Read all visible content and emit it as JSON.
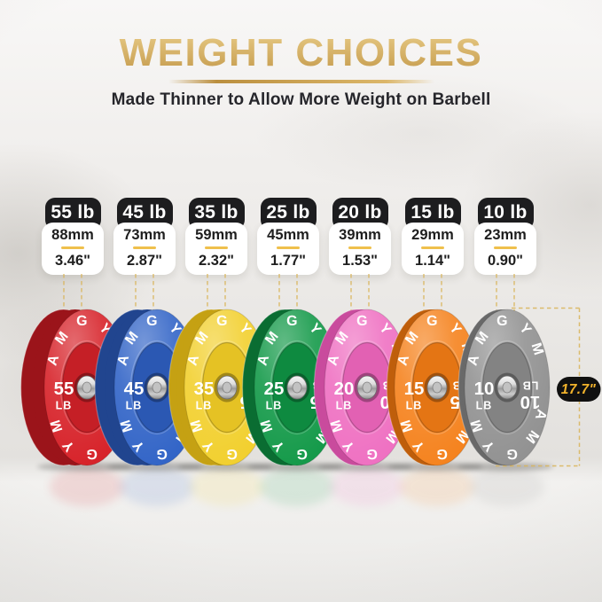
{
  "header": {
    "title": "WEIGHT CHOICES",
    "subtitle": "Made Thinner to Allow More Weight on Barbell"
  },
  "brand_text": "AMGYM",
  "diameter": {
    "label": "17.7\""
  },
  "plates": [
    {
      "badge": "55 lb",
      "thickness_mm": "88mm",
      "thickness_in": "3.46\"",
      "weight": "55",
      "unit": "LB",
      "face": "#d7232a",
      "rim": "#9b141a",
      "inner": "#c51f26"
    },
    {
      "badge": "45 lb",
      "thickness_mm": "73mm",
      "thickness_in": "2.87\"",
      "weight": "45",
      "unit": "LB",
      "face": "#3365c7",
      "rim": "#21458f",
      "inner": "#2b58b3"
    },
    {
      "badge": "35 lb",
      "thickness_mm": "59mm",
      "thickness_in": "2.32\"",
      "weight": "35",
      "unit": "LB",
      "face": "#f2d02f",
      "rim": "#c5a113",
      "inner": "#e5c224"
    },
    {
      "badge": "25 lb",
      "thickness_mm": "45mm",
      "thickness_in": "1.77\"",
      "weight": "25",
      "unit": "LB",
      "face": "#159a4a",
      "rim": "#0a6d32",
      "inner": "#0e8a40"
    },
    {
      "badge": "20 lb",
      "thickness_mm": "39mm",
      "thickness_in": "1.53\"",
      "weight": "20",
      "unit": "LB",
      "face": "#ef71c2",
      "rim": "#c94b9d",
      "inner": "#e261b3"
    },
    {
      "badge": "15 lb",
      "thickness_mm": "29mm",
      "thickness_in": "1.14\"",
      "weight": "15",
      "unit": "LB",
      "face": "#f5831f",
      "rim": "#bf5e0b",
      "inner": "#e47514"
    },
    {
      "badge": "10 lb",
      "thickness_mm": "23mm",
      "thickness_in": "0.90\"",
      "weight": "10",
      "unit": "LB",
      "face": "#929292",
      "rim": "#696969",
      "inner": "#838383"
    }
  ],
  "colors": {
    "gold_dash": "#d9b458",
    "badge_black": "#1d1d1f",
    "pill_bg": "#101010",
    "pill_text": "#f2b32b"
  }
}
